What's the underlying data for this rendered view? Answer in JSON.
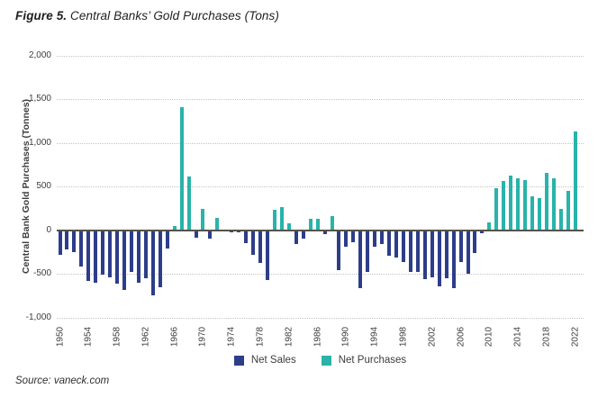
{
  "figure": {
    "title_prefix": "Figure 5.",
    "title_rest": " Central Banks’ Gold Purchases (Tons)",
    "source": "Source: vaneck.com"
  },
  "legend": {
    "net_sales_label": "Net Sales",
    "net_purchases_label": "Net Purchases"
  },
  "colors": {
    "net_sales": "#2e3d8a",
    "net_purchases": "#29b3aa",
    "zero_axis": "#55524b",
    "gridline": "#c6c4be",
    "tick_text": "#3d3d3d",
    "title_text": "#1f1f1f"
  },
  "chart_data": {
    "type": "bar",
    "title": "Figure 5. Central Banks’ Gold Purchases (Tons)",
    "xlabel": "",
    "ylabel": "Central Bank Gold Purchases (Tonnes)",
    "ylim": [
      -1000,
      2000
    ],
    "ytick_values": [
      2000,
      1500,
      1000,
      500,
      0,
      -500,
      -1000
    ],
    "ytick_labels": [
      "2,000",
      "1,500",
      "1,000",
      "500",
      "0",
      "-500",
      "-1,000"
    ],
    "xtick_years": [
      1950,
      1954,
      1958,
      1962,
      1966,
      1970,
      1974,
      1978,
      1982,
      1986,
      1990,
      1994,
      1998,
      2002,
      2006,
      2010,
      2014,
      2018,
      2022
    ],
    "grid": "horizontal dotted lines at 500-tonne intervals; solid dark line at zero",
    "legend_position": "bottom center",
    "series_semantics": {
      "negative_values": "Net Sales (navy)",
      "positive_values": "Net Purchases (teal)"
    },
    "years": [
      1950,
      1951,
      1952,
      1953,
      1954,
      1955,
      1956,
      1957,
      1958,
      1959,
      1960,
      1961,
      1962,
      1963,
      1964,
      1965,
      1966,
      1967,
      1968,
      1969,
      1970,
      1971,
      1972,
      1973,
      1974,
      1975,
      1976,
      1977,
      1978,
      1979,
      1980,
      1981,
      1982,
      1983,
      1984,
      1985,
      1986,
      1987,
      1988,
      1989,
      1990,
      1991,
      1992,
      1993,
      1994,
      1995,
      1996,
      1997,
      1998,
      1999,
      2000,
      2001,
      2002,
      2003,
      2004,
      2005,
      2006,
      2007,
      2008,
      2009,
      2010,
      2011,
      2012,
      2013,
      2014,
      2015,
      2016,
      2017,
      2018,
      2019,
      2020,
      2021,
      2022
    ],
    "values": [
      -280,
      -220,
      -255,
      -415,
      -585,
      -600,
      -510,
      -540,
      -610,
      -685,
      -480,
      -600,
      -550,
      -745,
      -655,
      -205,
      45,
      1410,
      620,
      -85,
      240,
      -95,
      145,
      -10,
      -25,
      -20,
      -150,
      -280,
      -380,
      -575,
      235,
      270,
      80,
      -155,
      -95,
      135,
      135,
      -45,
      160,
      -455,
      -185,
      -135,
      -665,
      -480,
      -185,
      -155,
      -290,
      -315,
      -370,
      -480,
      -480,
      -560,
      -540,
      -640,
      -550,
      -660,
      -370,
      -495,
      -260,
      -30,
      85,
      480,
      560,
      625,
      600,
      575,
      390,
      370,
      655,
      600,
      245,
      450,
      1135
    ]
  }
}
